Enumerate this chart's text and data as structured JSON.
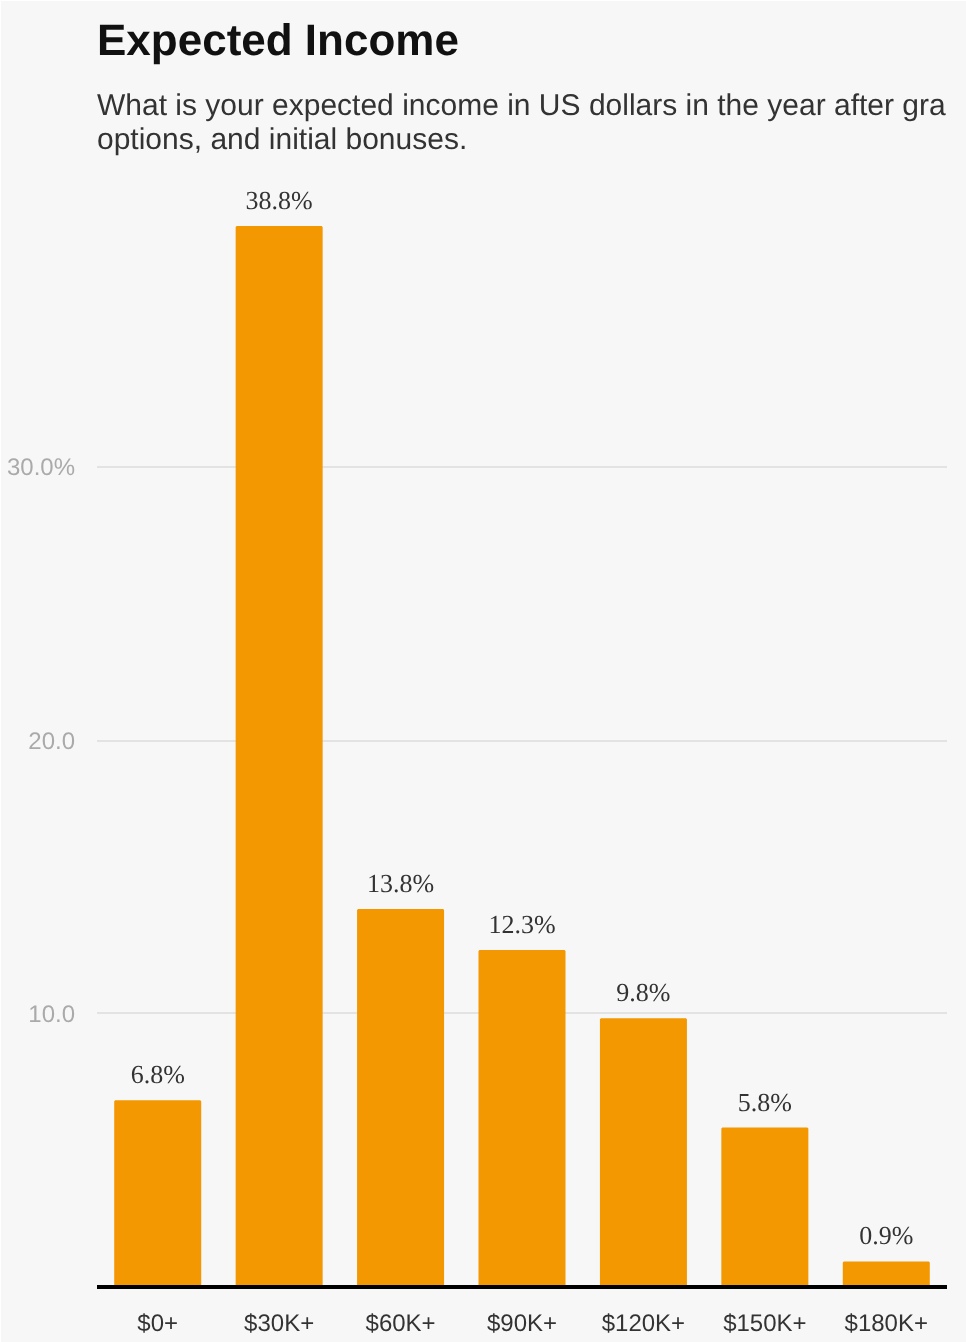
{
  "chart_data": {
    "type": "bar",
    "title": "Expected Income",
    "subtitle": "What is your expected income in US dollars in the year after gra\noptions, and initial bonuses.",
    "categories": [
      "$0+",
      "$30K+",
      "$60K+",
      "$90K+",
      "$120K+",
      "$150K+",
      "$180K+"
    ],
    "values": [
      6.8,
      38.8,
      13.8,
      12.3,
      9.8,
      5.8,
      0.9
    ],
    "value_labels": [
      "6.8%",
      "38.8%",
      "13.8%",
      "12.3%",
      "9.8%",
      "5.8%",
      "0.9%"
    ],
    "color": "#f39800",
    "ylim": [
      0,
      41
    ],
    "yticks": [
      {
        "value": 10,
        "label": "10.0"
      },
      {
        "value": 20,
        "label": "20.0"
      },
      {
        "value": 30,
        "label": "30.0%"
      }
    ],
    "grid": "y"
  }
}
